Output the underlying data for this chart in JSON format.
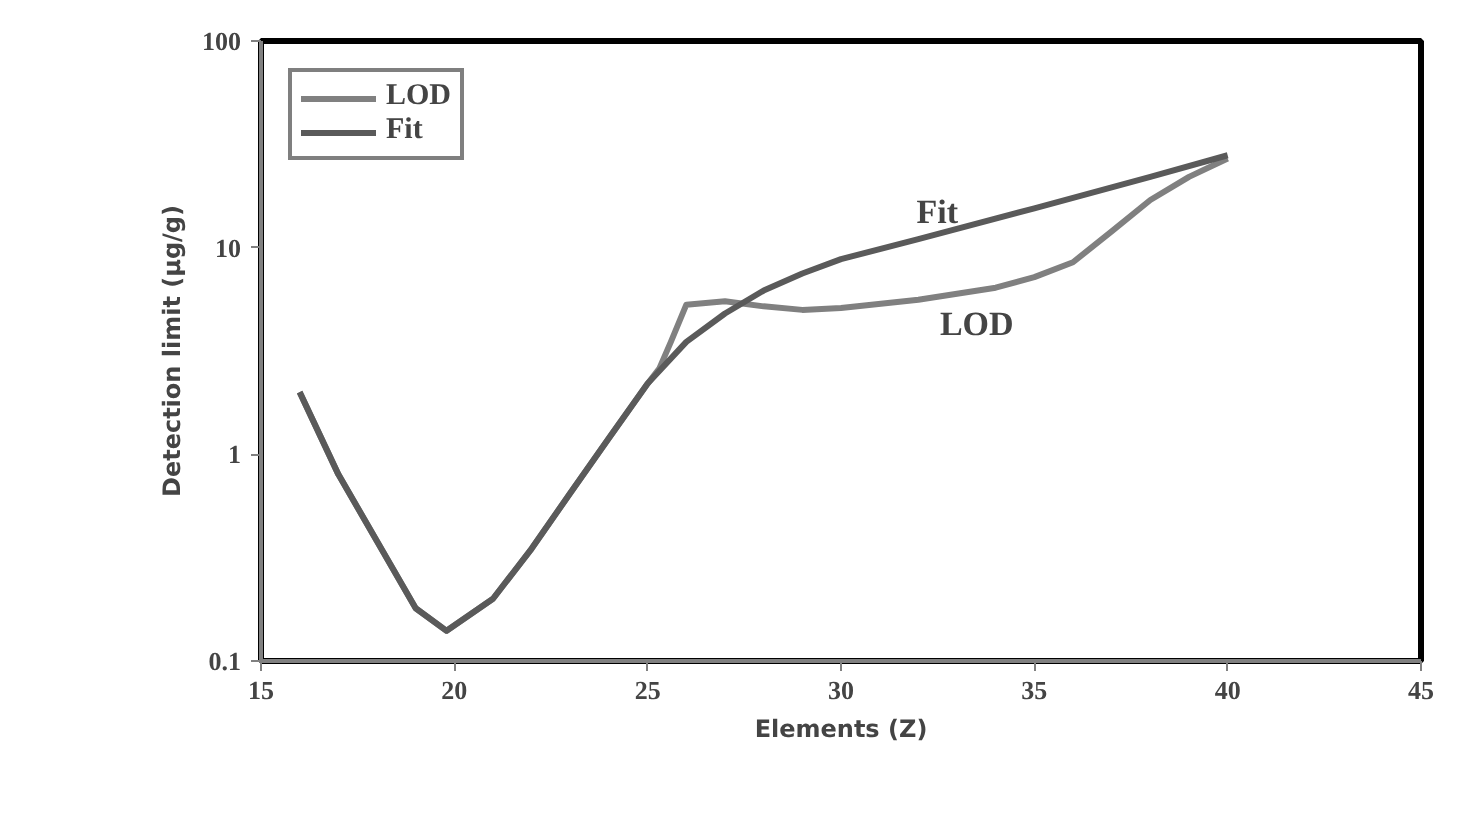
{
  "chart_data": {
    "type": "line",
    "xlabel": "Elements (Z)",
    "ylabel": "Detection limit (µg/g)",
    "log": "y",
    "xlim": [
      15,
      45
    ],
    "xticks": [
      15,
      20,
      25,
      30,
      35,
      40,
      45
    ],
    "ylim": [
      0.1,
      100
    ],
    "yticks": [
      0.1,
      1,
      10,
      100
    ],
    "grid": false,
    "legend": "top left",
    "marker": "none",
    "line_style": "solid",
    "series": [
      {
        "name": "LOD",
        "color": "#808080",
        "x": [
          16,
          17,
          18,
          19,
          19.8,
          21,
          22,
          23,
          24,
          25,
          25.3,
          25.6,
          26,
          27,
          28,
          29,
          30,
          32,
          34,
          35,
          36,
          37,
          38,
          39,
          40
        ],
        "values": [
          2.0,
          0.8,
          0.38,
          0.18,
          0.14,
          0.2,
          0.35,
          0.65,
          1.2,
          2.2,
          2.6,
          3.5,
          5.3,
          5.5,
          5.2,
          5.0,
          5.1,
          5.6,
          6.4,
          7.2,
          8.5,
          12,
          17,
          22,
          27
        ]
      },
      {
        "name": "Fit",
        "color": "#5a5a5a",
        "x": [
          16,
          17,
          18,
          19,
          19.8,
          21,
          22,
          23,
          24,
          25,
          26,
          27,
          28,
          29,
          30,
          32,
          35,
          38,
          40
        ],
        "values": [
          2.0,
          0.8,
          0.38,
          0.18,
          0.14,
          0.2,
          0.35,
          0.65,
          1.2,
          2.2,
          3.5,
          4.8,
          6.2,
          7.5,
          8.8,
          11,
          15.5,
          22,
          28
        ]
      }
    ],
    "annotations": [
      "Fit",
      "LOD"
    ]
  }
}
